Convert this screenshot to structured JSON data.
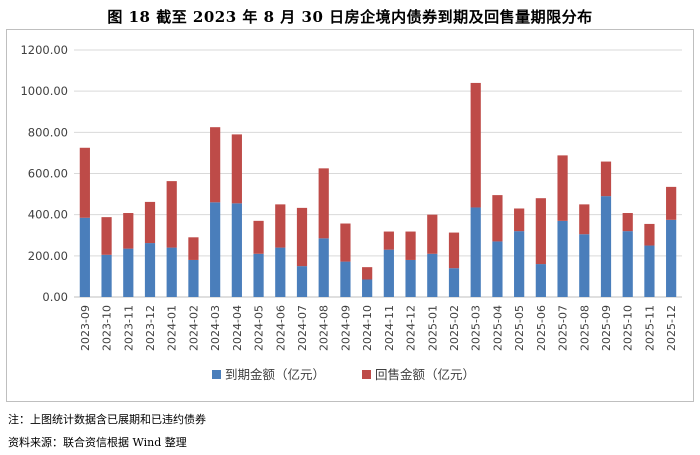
{
  "title": "图 18    截至 2023 年 8 月 30 日房企境内债券到期及回售量期限分布",
  "footnote": "注：上图统计数据含已展期和已违约债券",
  "source": "资料来源：联合资信根据 Wind 整理",
  "colors": {
    "maturity": "#4a7ebb",
    "putback": "#be4b48",
    "grid": "#d9d9d9",
    "axis": "#bfbfbf"
  },
  "chart_data": {
    "type": "bar",
    "stacked": true,
    "categories": [
      "2023-09",
      "2023-10",
      "2023-11",
      "2023-12",
      "2024-01",
      "2024-02",
      "2024-03",
      "2024-04",
      "2024-05",
      "2024-06",
      "2024-07",
      "2024-08",
      "2024-09",
      "2024-10",
      "2024-11",
      "2024-12",
      "2025-01",
      "2025-02",
      "2025-03",
      "2025-04",
      "2025-05",
      "2025-06",
      "2025-07",
      "2025-08",
      "2025-09",
      "2025-10",
      "2025-11",
      "2025-12"
    ],
    "series": [
      {
        "name": "到期金额（亿元）",
        "values": [
          385,
          205,
          235,
          262,
          240,
          180,
          460,
          455,
          210,
          240,
          150,
          285,
          172,
          85,
          230,
          180,
          210,
          140,
          435,
          270,
          320,
          160,
          370,
          305,
          490,
          320,
          250,
          375
        ]
      },
      {
        "name": "回售金额（亿元）",
        "values": [
          340,
          183,
          173,
          200,
          323,
          110,
          365,
          335,
          160,
          210,
          283,
          340,
          185,
          60,
          88,
          138,
          190,
          173,
          605,
          225,
          110,
          320,
          318,
          145,
          168,
          88,
          105,
          160
        ]
      }
    ],
    "ylim": [
      0,
      1200
    ],
    "yticks": [
      0,
      200,
      400,
      600,
      800,
      1000,
      1200
    ],
    "ytick_labels": [
      "0.00",
      "200.00",
      "400.00",
      "600.00",
      "800.00",
      "1000.00",
      "1200.00"
    ],
    "legend_position": "bottom"
  }
}
